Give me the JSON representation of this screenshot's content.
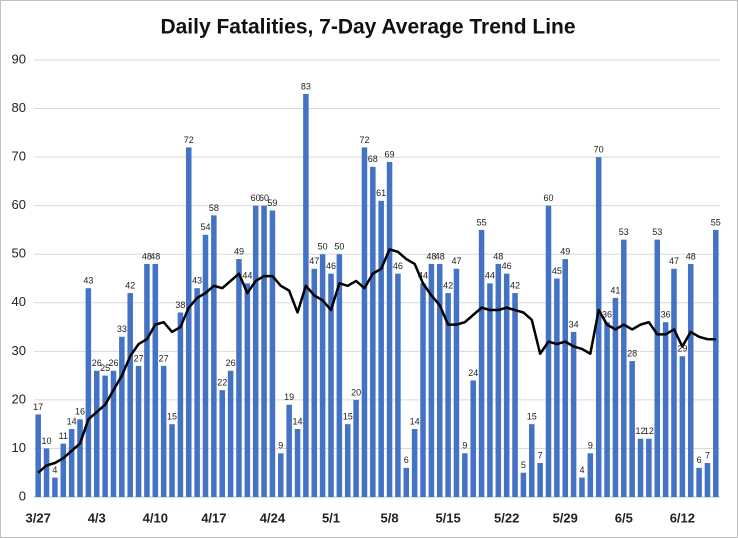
{
  "chart_data": {
    "type": "bar",
    "title": "Daily Fatalities, 7-Day Average Trend Line",
    "categories": [
      "3/27",
      null,
      null,
      null,
      null,
      null,
      null,
      "4/3",
      null,
      null,
      null,
      null,
      null,
      null,
      "4/10",
      null,
      null,
      null,
      null,
      null,
      null,
      "4/17",
      null,
      null,
      null,
      null,
      null,
      null,
      "4/24",
      null,
      null,
      null,
      null,
      null,
      null,
      "5/1",
      null,
      null,
      null,
      null,
      null,
      null,
      "5/8",
      null,
      null,
      null,
      null,
      null,
      null,
      "5/15",
      null,
      null,
      null,
      null,
      null,
      null,
      "5/22",
      null,
      null,
      null,
      null,
      null,
      null,
      "5/29",
      null,
      null,
      null,
      null,
      null,
      null,
      "6/5",
      null,
      null,
      null,
      null,
      null,
      null,
      "6/12",
      null,
      null,
      null,
      null
    ],
    "series": [
      {
        "type": "bar",
        "color": "#4472c4",
        "values": [
          17,
          10,
          4,
          11,
          14,
          16,
          43,
          26,
          25,
          26,
          33,
          42,
          27,
          48,
          48,
          27,
          15,
          38,
          72,
          43,
          54,
          58,
          22,
          26,
          49,
          44,
          60,
          60,
          59,
          9,
          19,
          14,
          83,
          47,
          50,
          46,
          50,
          15,
          20,
          72,
          68,
          61,
          69,
          46,
          6,
          14,
          44,
          48,
          48,
          42,
          47,
          9,
          24,
          55,
          44,
          48,
          46,
          42,
          5,
          15,
          7,
          60,
          45,
          49,
          34,
          4,
          9,
          70,
          36,
          41,
          53,
          28,
          12,
          12,
          53,
          36,
          47,
          29,
          48,
          6,
          7,
          55
        ]
      },
      {
        "type": "line",
        "color": "#000000",
        "values": [
          5,
          6.5,
          7,
          8,
          9.5,
          11,
          16,
          17.5,
          19,
          22,
          25,
          29,
          31.5,
          32.5,
          35.5,
          36,
          34,
          35,
          39,
          41,
          42,
          43.5,
          43,
          44.5,
          46,
          42,
          44.5,
          45.5,
          45.5,
          43.5,
          42.5,
          38,
          43.5,
          41.5,
          40.5,
          38.5,
          44,
          43.5,
          44.5,
          43,
          46,
          47,
          51,
          50.5,
          49,
          48,
          44,
          41.5,
          39.5,
          35.5,
          35.5,
          36,
          37.5,
          39,
          38.5,
          38.5,
          39,
          38.5,
          38,
          36.5,
          29.5,
          32,
          31.5,
          32,
          31,
          30.5,
          29.5,
          38.5,
          35.5,
          34.5,
          35.5,
          34.5,
          35.5,
          36,
          33.5,
          33.5,
          34.5,
          31,
          34,
          33,
          32.5,
          32.5
        ]
      }
    ],
    "ylim": [
      0,
      90
    ],
    "yticks": [
      0,
      10,
      20,
      30,
      40,
      50,
      60,
      70,
      80,
      90
    ],
    "grid": true
  }
}
